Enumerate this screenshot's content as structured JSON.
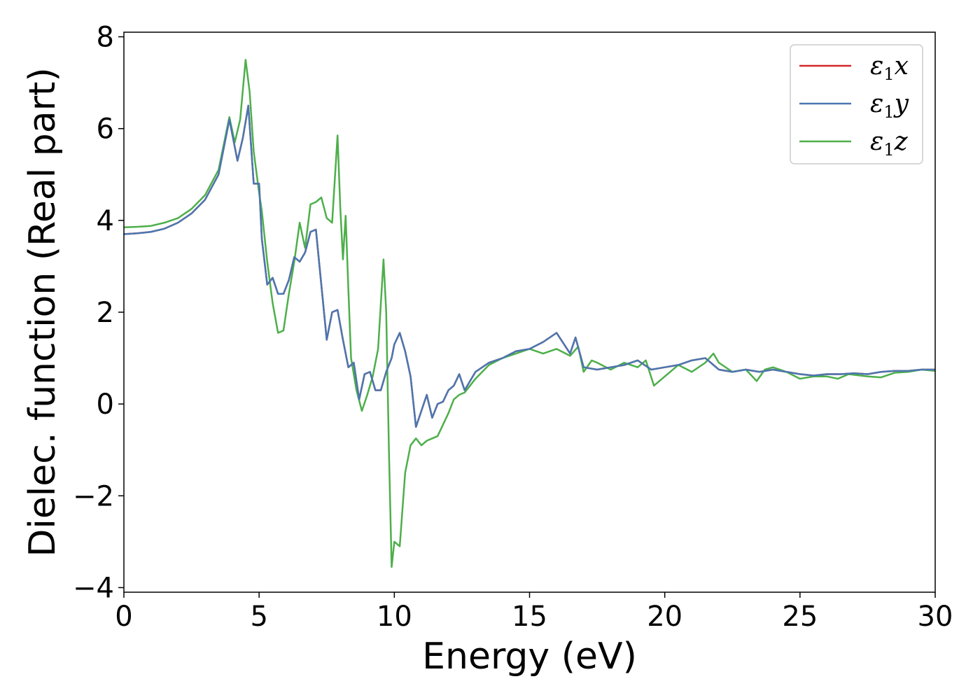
{
  "chart_data": {
    "type": "line",
    "title": "",
    "xlabel": "Energy (eV)",
    "ylabel": "Dielec. function (Real part)",
    "xlim": [
      0,
      30
    ],
    "ylim": [
      -4.1,
      8.1
    ],
    "xticks": [
      "0",
      "5",
      "10",
      "15",
      "20",
      "25",
      "30"
    ],
    "yticks": [
      "−4",
      "−2",
      "0",
      "2",
      "4",
      "6",
      "8"
    ],
    "grid": false,
    "legend": "top-right",
    "series": [
      {
        "name": "ε₁x",
        "legend_symbol": "ε",
        "legend_sub": "1",
        "legend_var": "x",
        "color": "#d62728",
        "x": [
          0,
          0.5,
          1,
          1.5,
          2,
          2.5,
          3,
          3.5,
          3.9,
          4.2,
          4.4,
          4.6,
          4.8,
          5.0,
          5.1,
          5.3,
          5.5,
          5.7,
          5.9,
          6.1,
          6.3,
          6.5,
          6.7,
          6.9,
          7.1,
          7.3,
          7.5,
          7.7,
          7.9,
          8.1,
          8.3,
          8.5,
          8.7,
          8.9,
          9.1,
          9.3,
          9.5,
          9.7,
          9.9,
          10.0,
          10.2,
          10.4,
          10.6,
          10.8,
          11.0,
          11.2,
          11.4,
          11.6,
          11.8,
          12.0,
          12.2,
          12.4,
          12.6,
          12.8,
          13.0,
          13.5,
          14.0,
          14.5,
          15.0,
          15.5,
          16.0,
          16.5,
          16.7,
          17.0,
          17.5,
          18.0,
          18.5,
          19.0,
          19.5,
          20.0,
          20.5,
          21.0,
          21.5,
          22.0,
          22.5,
          23.0,
          23.5,
          24.0,
          24.5,
          25.0,
          25.5,
          26.0,
          26.5,
          27.0,
          27.5,
          28.0,
          28.5,
          29.0,
          29.5,
          30.0
        ],
        "y": [
          3.7,
          3.72,
          3.75,
          3.82,
          3.95,
          4.15,
          4.45,
          5.0,
          6.2,
          5.3,
          5.8,
          6.5,
          4.8,
          4.8,
          3.6,
          2.6,
          2.75,
          2.4,
          2.4,
          2.7,
          3.2,
          3.1,
          3.3,
          3.75,
          3.8,
          2.6,
          1.4,
          2.0,
          2.05,
          1.4,
          0.8,
          0.9,
          0.1,
          0.65,
          0.7,
          0.3,
          0.3,
          0.7,
          1.0,
          1.3,
          1.55,
          1.15,
          0.6,
          -0.5,
          -0.15,
          0.2,
          -0.3,
          0.0,
          0.05,
          0.3,
          0.4,
          0.65,
          0.3,
          0.5,
          0.7,
          0.9,
          1.0,
          1.15,
          1.2,
          1.35,
          1.55,
          1.1,
          1.45,
          0.8,
          0.75,
          0.8,
          0.85,
          0.95,
          0.75,
          0.8,
          0.85,
          0.95,
          1.0,
          0.75,
          0.7,
          0.75,
          0.7,
          0.75,
          0.7,
          0.65,
          0.62,
          0.65,
          0.65,
          0.67,
          0.65,
          0.7,
          0.72,
          0.72,
          0.75,
          0.75
        ]
      },
      {
        "name": "ε₁y",
        "legend_symbol": "ε",
        "legend_sub": "1",
        "legend_var": "y",
        "color": "#4a77b0",
        "x": [
          0,
          0.5,
          1,
          1.5,
          2,
          2.5,
          3,
          3.5,
          3.9,
          4.2,
          4.4,
          4.6,
          4.8,
          5.0,
          5.1,
          5.3,
          5.5,
          5.7,
          5.9,
          6.1,
          6.3,
          6.5,
          6.7,
          6.9,
          7.1,
          7.3,
          7.5,
          7.7,
          7.9,
          8.1,
          8.3,
          8.5,
          8.7,
          8.9,
          9.1,
          9.3,
          9.5,
          9.7,
          9.9,
          10.0,
          10.2,
          10.4,
          10.6,
          10.8,
          11.0,
          11.2,
          11.4,
          11.6,
          11.8,
          12.0,
          12.2,
          12.4,
          12.6,
          12.8,
          13.0,
          13.5,
          14.0,
          14.5,
          15.0,
          15.5,
          16.0,
          16.5,
          16.7,
          17.0,
          17.5,
          18.0,
          18.5,
          19.0,
          19.5,
          20.0,
          20.5,
          21.0,
          21.5,
          22.0,
          22.5,
          23.0,
          23.5,
          24.0,
          24.5,
          25.0,
          25.5,
          26.0,
          26.5,
          27.0,
          27.5,
          28.0,
          28.5,
          29.0,
          29.5,
          30.0
        ],
        "y": [
          3.7,
          3.72,
          3.75,
          3.82,
          3.95,
          4.15,
          4.45,
          5.0,
          6.2,
          5.3,
          5.8,
          6.5,
          4.8,
          4.8,
          3.6,
          2.6,
          2.75,
          2.4,
          2.4,
          2.7,
          3.2,
          3.1,
          3.3,
          3.75,
          3.8,
          2.6,
          1.4,
          2.0,
          2.05,
          1.4,
          0.8,
          0.9,
          0.1,
          0.65,
          0.7,
          0.3,
          0.3,
          0.7,
          1.0,
          1.3,
          1.55,
          1.15,
          0.6,
          -0.5,
          -0.15,
          0.2,
          -0.3,
          0.0,
          0.05,
          0.3,
          0.4,
          0.65,
          0.3,
          0.5,
          0.7,
          0.9,
          1.0,
          1.15,
          1.2,
          1.35,
          1.55,
          1.1,
          1.45,
          0.8,
          0.75,
          0.8,
          0.85,
          0.95,
          0.75,
          0.8,
          0.85,
          0.95,
          1.0,
          0.75,
          0.7,
          0.75,
          0.7,
          0.75,
          0.7,
          0.65,
          0.62,
          0.65,
          0.65,
          0.67,
          0.65,
          0.7,
          0.72,
          0.72,
          0.75,
          0.75
        ]
      },
      {
        "name": "ε₁z",
        "legend_symbol": "ε",
        "legend_sub": "1",
        "legend_var": "z",
        "color": "#4daf4a",
        "x": [
          0,
          0.5,
          1,
          1.5,
          2,
          2.5,
          3,
          3.5,
          3.9,
          4.1,
          4.3,
          4.5,
          4.65,
          4.8,
          5.0,
          5.1,
          5.3,
          5.5,
          5.7,
          5.9,
          6.1,
          6.3,
          6.5,
          6.7,
          6.9,
          7.1,
          7.3,
          7.5,
          7.7,
          7.9,
          8.0,
          8.1,
          8.2,
          8.3,
          8.4,
          8.6,
          8.8,
          9.0,
          9.2,
          9.4,
          9.6,
          9.7,
          9.8,
          9.9,
          10.0,
          10.2,
          10.4,
          10.6,
          10.8,
          11.0,
          11.2,
          11.4,
          11.6,
          11.8,
          12.0,
          12.2,
          12.4,
          12.6,
          12.8,
          13.0,
          13.5,
          14.0,
          14.5,
          15.0,
          15.5,
          16.0,
          16.5,
          16.8,
          17.0,
          17.3,
          17.5,
          18.0,
          18.5,
          19.0,
          19.3,
          19.6,
          20.0,
          20.5,
          21.0,
          21.5,
          21.8,
          22.0,
          22.5,
          23.0,
          23.4,
          23.7,
          24.0,
          24.5,
          25.0,
          25.5,
          26.0,
          26.4,
          26.8,
          27.5,
          28.0,
          28.5,
          29.0,
          29.5,
          30.0
        ],
        "y": [
          3.85,
          3.86,
          3.88,
          3.95,
          4.05,
          4.25,
          4.55,
          5.1,
          6.25,
          5.7,
          6.2,
          7.5,
          6.8,
          5.5,
          4.6,
          4.2,
          3.1,
          2.2,
          1.55,
          1.6,
          2.4,
          3.1,
          3.95,
          3.4,
          4.35,
          4.4,
          4.5,
          4.05,
          3.95,
          5.85,
          4.3,
          3.15,
          4.1,
          2.5,
          1.0,
          0.3,
          -0.15,
          0.2,
          0.6,
          1.2,
          3.15,
          2.0,
          -1.0,
          -3.55,
          -3.0,
          -3.1,
          -1.5,
          -0.9,
          -0.75,
          -0.9,
          -0.8,
          -0.75,
          -0.7,
          -0.45,
          -0.2,
          0.1,
          0.2,
          0.25,
          0.4,
          0.55,
          0.85,
          1.0,
          1.1,
          1.2,
          1.1,
          1.2,
          1.05,
          1.25,
          0.7,
          0.95,
          0.9,
          0.75,
          0.9,
          0.8,
          0.95,
          0.4,
          0.6,
          0.85,
          0.7,
          0.9,
          1.1,
          0.9,
          0.7,
          0.75,
          0.5,
          0.75,
          0.8,
          0.7,
          0.55,
          0.6,
          0.6,
          0.55,
          0.65,
          0.6,
          0.58,
          0.68,
          0.7,
          0.75,
          0.72
        ]
      }
    ]
  }
}
